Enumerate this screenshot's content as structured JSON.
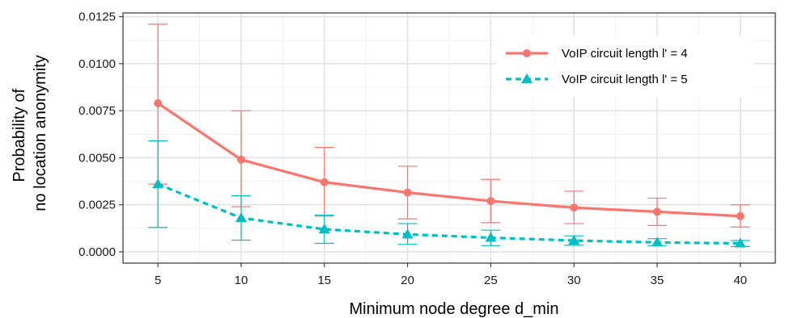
{
  "chart_data": {
    "type": "line",
    "title": "",
    "xlabel": "Minimum node degree d_min",
    "ylabel_lines": [
      "Probability of",
      "no location anonymity"
    ],
    "x": [
      5,
      10,
      15,
      20,
      25,
      30,
      35,
      40
    ],
    "x_tick_labels": [
      "5",
      "10",
      "15",
      "20",
      "25",
      "30",
      "35",
      "40"
    ],
    "y_tick_values": [
      0.0,
      0.0025,
      0.005,
      0.0075,
      0.01,
      0.0125
    ],
    "y_tick_labels": [
      "0.0000",
      "0.0025",
      "0.0050",
      "0.0075",
      "0.0100",
      "0.0125"
    ],
    "xlim": [
      2.9,
      42.1
    ],
    "ylim": [
      -0.0006,
      0.0127
    ],
    "grid": true,
    "legend_position": "top-right",
    "series": [
      {
        "name": "VoIP circuit length l' = 4",
        "color": "#F8766D",
        "marker": "circle",
        "line_style": "solid",
        "values": [
          0.0079,
          0.0049,
          0.0037,
          0.00315,
          0.0027,
          0.00235,
          0.00213,
          0.0019
        ],
        "error_low": [
          0.0036,
          0.0024,
          0.0019,
          0.00175,
          0.00155,
          0.0015,
          0.0014,
          0.00132
        ],
        "error_high": [
          0.0121,
          0.0075,
          0.00555,
          0.00455,
          0.00385,
          0.00322,
          0.00285,
          0.0025
        ]
      },
      {
        "name": "VoIP circuit length l' = 5",
        "color": "#00BFC4",
        "marker": "triangle",
        "line_style": "dashed",
        "values": [
          0.0036,
          0.0018,
          0.0012,
          0.00093,
          0.00075,
          0.0006,
          0.0005,
          0.00045
        ],
        "error_low": [
          0.0013,
          0.00062,
          0.00045,
          0.0004,
          0.00033,
          0.00035,
          0.00033,
          0.00028
        ],
        "error_high": [
          0.0059,
          0.00298,
          0.00195,
          0.0015,
          0.00115,
          0.00085,
          0.0007,
          0.0006
        ]
      }
    ]
  }
}
